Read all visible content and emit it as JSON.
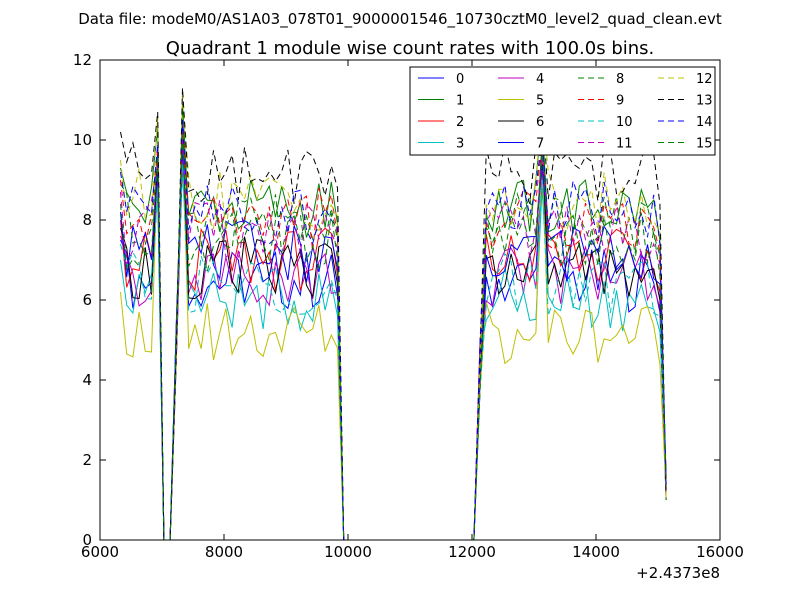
{
  "chart_data": {
    "type": "line",
    "suptitle": "Data file: modeM0/AS1A03_078T01_9000001546_10730cztM0_level2_quad_clean.evt",
    "title": "Quadrant 1 module wise count rates with 100.0s bins.",
    "xlabel": "",
    "ylabel": "",
    "x_offset_label": "+2.4373e8",
    "xlim": [
      6000,
      16000
    ],
    "ylim": [
      0,
      12
    ],
    "x_ticks": [
      6000,
      8000,
      10000,
      12000,
      14000,
      16000
    ],
    "y_ticks": [
      0,
      2,
      4,
      6,
      8,
      10,
      12
    ],
    "x_tick_labels": [
      "6000",
      "8000",
      "10000",
      "12000",
      "14000",
      "16000"
    ],
    "y_tick_labels": [
      "0",
      "2",
      "4",
      "6",
      "8",
      "10",
      "12"
    ],
    "grid": false,
    "legend_position": "top-right",
    "legend_columns": 4,
    "segments": [
      {
        "x_start": 6330,
        "x_end": 6930,
        "points": 7
      },
      {
        "x_start": 7030,
        "x_end": 7130,
        "points": 2
      },
      {
        "x_start": 7230,
        "x_end": 9830,
        "points": 27
      },
      {
        "x_start": 9930,
        "x_end": 12030,
        "points": 22
      },
      {
        "x_start": 12130,
        "x_end": 15130,
        "points": 31
      }
    ],
    "series": [
      {
        "name": "0",
        "color": "#0000ff",
        "style": "solid",
        "level": 6.5,
        "peak": 9.6
      },
      {
        "name": "1",
        "color": "#008000",
        "style": "solid",
        "level": 8.3,
        "peak": 10.9
      },
      {
        "name": "2",
        "color": "#ff0000",
        "style": "solid",
        "level": 7.0,
        "peak": 10.3
      },
      {
        "name": "3",
        "color": "#00bfbf",
        "style": "solid",
        "level": 6.0,
        "peak": 9.2
      },
      {
        "name": "4",
        "color": "#bf00bf",
        "style": "solid",
        "level": 6.6,
        "peak": 9.6
      },
      {
        "name": "5",
        "color": "#bfbf00",
        "style": "solid",
        "level": 5.2,
        "peak": 10.2
      },
      {
        "name": "6",
        "color": "#000000",
        "style": "solid",
        "level": 6.8,
        "peak": 10.3
      },
      {
        "name": "7",
        "color": "#0000ff",
        "style": "solid",
        "level": 7.2,
        "peak": 9.8
      },
      {
        "name": "8",
        "color": "#008000",
        "style": "dashed",
        "level": 7.9,
        "peak": 10.1
      },
      {
        "name": "9",
        "color": "#ff0000",
        "style": "dashed",
        "level": 8.0,
        "peak": 10.4
      },
      {
        "name": "10",
        "color": "#00bfbf",
        "style": "dashed",
        "level": 6.4,
        "peak": 9.4
      },
      {
        "name": "11",
        "color": "#bf00bf",
        "style": "dashed",
        "level": 7.7,
        "peak": 10.0
      },
      {
        "name": "12",
        "color": "#bfbf00",
        "style": "dashed",
        "level": 8.5,
        "peak": 11.2
      },
      {
        "name": "13",
        "color": "#000000",
        "style": "dashed",
        "level": 9.2,
        "peak": 11.3
      },
      {
        "name": "14",
        "color": "#0000ff",
        "style": "dashed",
        "level": 8.2,
        "peak": 10.5
      },
      {
        "name": "15",
        "color": "#008000",
        "style": "dashed",
        "level": 7.4,
        "peak": 10.2
      }
    ]
  }
}
